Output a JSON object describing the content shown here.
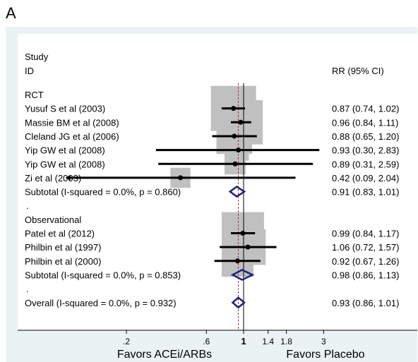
{
  "panel_label": "A",
  "colors": {
    "background": "#eaf2f3",
    "plot_panel": "#ffffff",
    "weight_box": "#c0c0c0",
    "point_estimate": "#000000",
    "pooled_diamond": "#1a237e",
    "null_line": "#000000",
    "overall_line": "#b03030"
  },
  "chart_data": {
    "type": "forest",
    "header_left": [
      "Study",
      "ID"
    ],
    "header_right": "RR (95% CI)",
    "xlabel_left": "Favors ACEi/ARBs",
    "xlabel_right": "Favors Placebo",
    "x_scale": "log",
    "x_ticks": [
      0.2,
      0.6,
      1,
      1.4,
      1.8,
      3
    ],
    "x_tick_labels": [
      ".2",
      ".6",
      "1",
      "1.4",
      "1.8",
      "3"
    ],
    "null_value": 1,
    "overall_estimate": 0.93,
    "rows": [
      {
        "kind": "group",
        "label": "RCT"
      },
      {
        "kind": "study",
        "label": "Yusuf S et al (2003)",
        "rr": 0.87,
        "lo": 0.74,
        "hi": 1.02,
        "ci_text": "0.87 (0.74, 1.02)",
        "weight": 1.0
      },
      {
        "kind": "study",
        "label": "Massie BM et al (2008)",
        "rr": 0.96,
        "lo": 0.84,
        "hi": 1.11,
        "ci_text": "0.96 (0.84, 1.11)",
        "weight": 0.95
      },
      {
        "kind": "study",
        "label": "Cleland JG  et al (2006)",
        "rr": 0.88,
        "lo": 0.65,
        "hi": 1.2,
        "ci_text": "0.88 (0.65, 1.20)",
        "weight": 0.55
      },
      {
        "kind": "study",
        "label": "Yip GW et al  (2008)",
        "rr": 0.93,
        "lo": 0.3,
        "hi": 2.83,
        "ci_text": "0.93 (0.30, 2.83)",
        "weight": 0.12
      },
      {
        "kind": "study",
        "label": "Yip GW et al  (2008)",
        "rr": 0.89,
        "lo": 0.31,
        "hi": 2.59,
        "ci_text": "0.89 (0.31, 2.59)",
        "weight": 0.12
      },
      {
        "kind": "study",
        "label": "Zi et al  (2003)",
        "rr": 0.42,
        "lo": 0.09,
        "hi": 2.04,
        "ci_text": "0.42 (0.09, 2.04)",
        "weight": 0.1,
        "lo_arrow": true
      },
      {
        "kind": "subtotal",
        "label": "Subtotal  (I-squared = 0.0%, p = 0.860)",
        "rr": 0.91,
        "lo": 0.83,
        "hi": 1.01,
        "ci_text": "0.91 (0.83, 1.01)"
      },
      {
        "kind": "dot",
        "label": "."
      },
      {
        "kind": "group",
        "label": "Observational"
      },
      {
        "kind": "study",
        "label": "Patel et al (2012)",
        "rr": 0.99,
        "lo": 0.84,
        "hi": 1.17,
        "ci_text": "0.99 (0.84, 1.17)",
        "weight": 0.85
      },
      {
        "kind": "study",
        "label": "Philbin et al  (1997)",
        "rr": 1.06,
        "lo": 0.72,
        "hi": 1.57,
        "ci_text": "1.06 (0.72, 1.57)",
        "weight": 0.55
      },
      {
        "kind": "study",
        "label": "Philbin et al  (2000)",
        "rr": 0.92,
        "lo": 0.67,
        "hi": 1.26,
        "ci_text": "0.92 (0.67, 1.26)",
        "weight": 0.4
      },
      {
        "kind": "subtotal",
        "label": "Subtotal  (I-squared = 0.0%, p = 0.853)",
        "rr": 0.98,
        "lo": 0.86,
        "hi": 1.13,
        "ci_text": "0.98 (0.86, 1.13)"
      },
      {
        "kind": "dot",
        "label": "."
      },
      {
        "kind": "overall",
        "label": "Overall  (I-squared = 0.0%, p = 0.932)",
        "rr": 0.93,
        "lo": 0.86,
        "hi": 1.01,
        "ci_text": "0.93 (0.86, 1.01)"
      }
    ]
  }
}
